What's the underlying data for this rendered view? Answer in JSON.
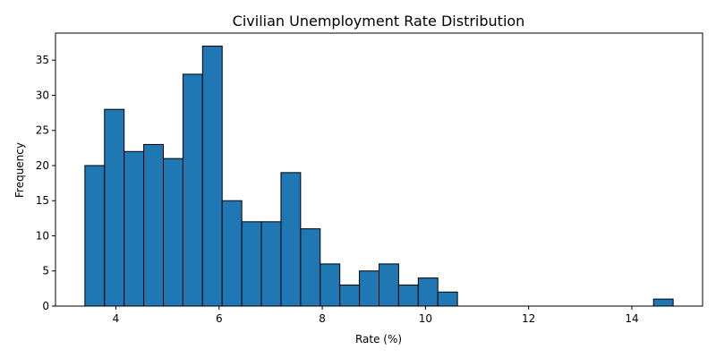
{
  "chart_data": {
    "type": "bar",
    "title": "Civilian Unemployment Rate Distribution",
    "xlabel": "Rate (%)",
    "ylabel": "Frequency",
    "xlim": [
      2.83,
      15.37
    ],
    "ylim": [
      0,
      38.85
    ],
    "x_ticks": [
      4,
      6,
      8,
      10,
      12,
      14
    ],
    "y_ticks": [
      0,
      5,
      10,
      15,
      20,
      25,
      30,
      35
    ],
    "grid": false,
    "bar_color": "#1f77b4",
    "edge_color": "#000000",
    "bins": [
      {
        "x0": 3.4,
        "x1": 3.78,
        "count": 20
      },
      {
        "x0": 3.78,
        "x1": 4.16,
        "count": 28
      },
      {
        "x0": 4.16,
        "x1": 4.54,
        "count": 22
      },
      {
        "x0": 4.54,
        "x1": 4.92,
        "count": 23
      },
      {
        "x0": 4.92,
        "x1": 5.3,
        "count": 21
      },
      {
        "x0": 5.3,
        "x1": 5.68,
        "count": 33
      },
      {
        "x0": 5.68,
        "x1": 6.06,
        "count": 37
      },
      {
        "x0": 6.06,
        "x1": 6.44,
        "count": 15
      },
      {
        "x0": 6.44,
        "x1": 6.82,
        "count": 12
      },
      {
        "x0": 6.82,
        "x1": 7.2,
        "count": 12
      },
      {
        "x0": 7.2,
        "x1": 7.58,
        "count": 19
      },
      {
        "x0": 7.58,
        "x1": 7.96,
        "count": 11
      },
      {
        "x0": 7.96,
        "x1": 8.34,
        "count": 6
      },
      {
        "x0": 8.34,
        "x1": 8.72,
        "count": 3
      },
      {
        "x0": 8.72,
        "x1": 9.1,
        "count": 5
      },
      {
        "x0": 9.1,
        "x1": 9.48,
        "count": 6
      },
      {
        "x0": 9.48,
        "x1": 9.86,
        "count": 3
      },
      {
        "x0": 9.86,
        "x1": 10.24,
        "count": 4
      },
      {
        "x0": 10.24,
        "x1": 10.62,
        "count": 2
      },
      {
        "x0": 10.62,
        "x1": 11.0,
        "count": 0
      },
      {
        "x0": 11.0,
        "x1": 11.38,
        "count": 0
      },
      {
        "x0": 11.38,
        "x1": 11.76,
        "count": 0
      },
      {
        "x0": 11.76,
        "x1": 12.14,
        "count": 0
      },
      {
        "x0": 12.14,
        "x1": 12.52,
        "count": 0
      },
      {
        "x0": 12.52,
        "x1": 12.9,
        "count": 0
      },
      {
        "x0": 12.9,
        "x1": 13.28,
        "count": 0
      },
      {
        "x0": 13.28,
        "x1": 13.66,
        "count": 0
      },
      {
        "x0": 13.66,
        "x1": 14.04,
        "count": 0
      },
      {
        "x0": 14.04,
        "x1": 14.42,
        "count": 0
      },
      {
        "x0": 14.42,
        "x1": 14.8,
        "count": 1
      }
    ]
  }
}
